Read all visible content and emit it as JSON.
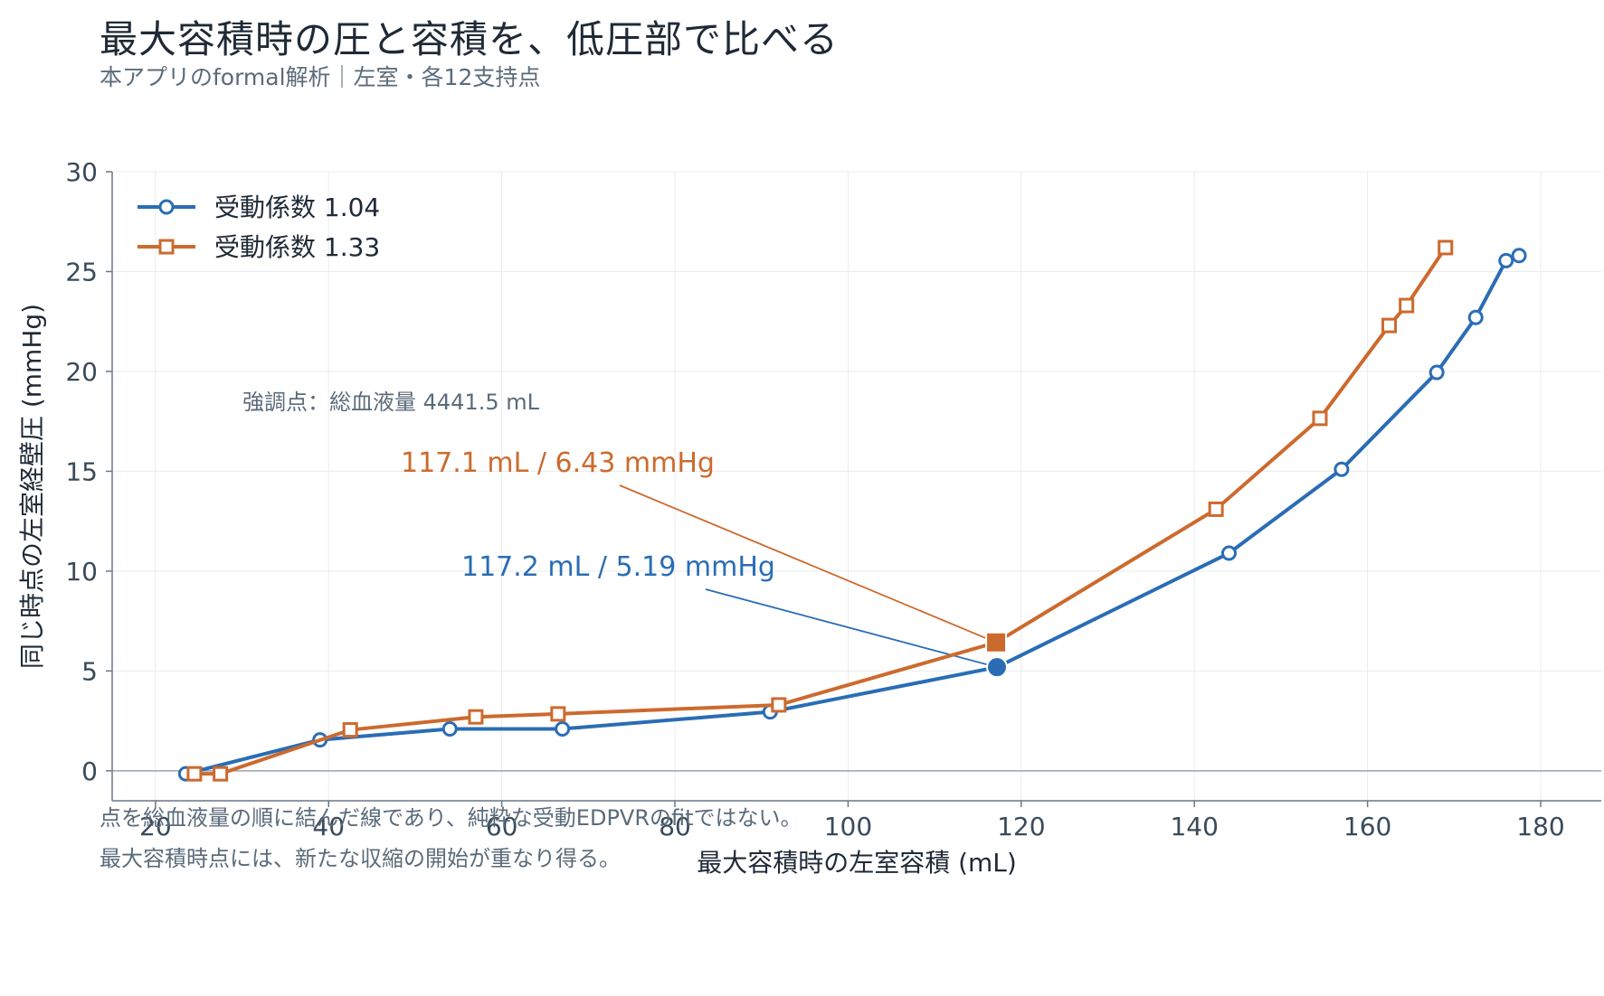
{
  "title": "最大容積時の圧と容積を、低圧部で比べる",
  "subtitle": "本アプリのformal解析｜左室・各12支持点",
  "notes": [
    "点を総血液量の順に結んだ線であり、純粋な受動EDPVRのfitではない。",
    "最大容積時点には、新たな収縮の開始が重なり得る。"
  ],
  "colors": {
    "blue": "#2a6db5",
    "orange": "#cc6a2e",
    "grid": "#e8ecef",
    "axis": "#6b7785",
    "text": "#3a4a5a"
  },
  "chart_data": {
    "type": "line",
    "xlabel": "最大容積時の左室容積 (mL)",
    "ylabel": "同じ時点の左室経壁圧 (mmHg)",
    "xlim": [
      15,
      187
    ],
    "ylim": [
      -1.5,
      30
    ],
    "xticks": [
      20,
      40,
      60,
      80,
      100,
      120,
      140,
      160,
      180
    ],
    "yticks": [
      0,
      5,
      10,
      15,
      20,
      25,
      30
    ],
    "grid": true,
    "legend_position": "top-left",
    "highlight_note": "強調点：総血液量 4441.5 mL",
    "series": [
      {
        "name": "受動係数 1.04",
        "color": "#2a6db5",
        "marker": "circle",
        "x": [
          23.5,
          39.0,
          54.0,
          67.0,
          91.0,
          117.2,
          144.0,
          157.0,
          168.0,
          172.5,
          176.0,
          177.5
        ],
        "y": [
          -0.15,
          1.55,
          2.1,
          2.1,
          2.95,
          5.19,
          10.9,
          15.1,
          19.95,
          22.7,
          25.55,
          25.8
        ],
        "highlight_index": 5,
        "label": "117.2 mL / 5.19 mmHg"
      },
      {
        "name": "受動係数 1.33",
        "color": "#cc6a2e",
        "marker": "square",
        "x": [
          24.5,
          27.5,
          42.5,
          57.0,
          66.5,
          92.0,
          117.1,
          142.5,
          154.5,
          162.5,
          164.5,
          169.0
        ],
        "y": [
          -0.15,
          -0.15,
          2.05,
          2.7,
          2.85,
          3.3,
          6.43,
          13.1,
          17.65,
          22.3,
          23.3,
          26.2
        ],
        "highlight_index": 6,
        "label": "117.1 mL / 6.43 mmHg"
      }
    ]
  }
}
